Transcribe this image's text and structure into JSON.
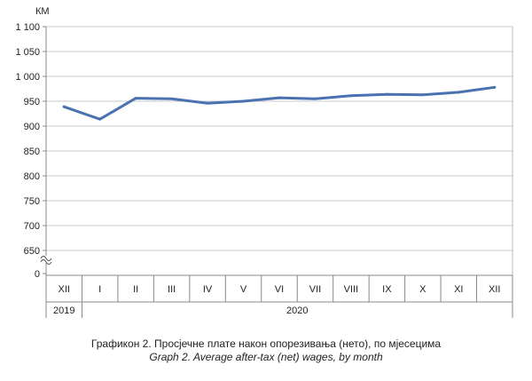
{
  "chart_data": {
    "type": "line",
    "unit_label": "КМ",
    "y_ticks": [
      "1 100",
      "1 050",
      "1 000",
      "950",
      "900",
      "850",
      "800",
      "750",
      "700",
      "650",
      "0"
    ],
    "ylim": [
      650,
      1100
    ],
    "y_break": true,
    "grid": "horizontal",
    "categories": [
      "XII",
      "I",
      "II",
      "III",
      "IV",
      "V",
      "VI",
      "VII",
      "VIII",
      "IX",
      "X",
      "XI",
      "XII"
    ],
    "year_groups": [
      {
        "label": "2019",
        "span": 1
      },
      {
        "label": "2020",
        "span": 12
      }
    ],
    "series": [
      {
        "values": [
          939,
          914,
          956,
          955,
          946,
          950,
          957,
          955,
          961,
          964,
          963,
          968,
          978
        ],
        "color": "#4a72b0"
      }
    ]
  },
  "caption": {
    "line1": "Графикон 2. Просјечне плате након опорезивања (нето), по мјесецима",
    "line2": "Graph 2. Average after-tax (net) wages, by month"
  }
}
